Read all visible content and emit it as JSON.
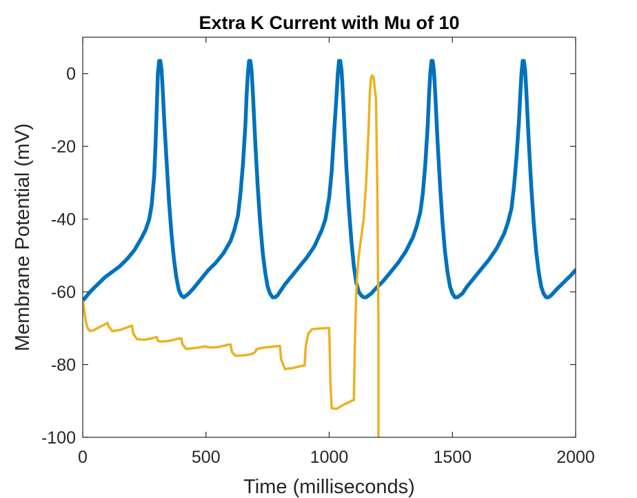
{
  "chart_data": {
    "type": "line",
    "title": "Extra K Current with Mu of 10",
    "xlabel": "Time (milliseconds)",
    "ylabel": "Membrane Potential (mV)",
    "xlim": [
      0,
      2000
    ],
    "ylim": [
      -100,
      10
    ],
    "xticks": [
      0,
      500,
      1000,
      1500,
      2000
    ],
    "xtick_labels": [
      "0",
      "500",
      "1000",
      "1500",
      "2000"
    ],
    "yticks": [
      -100,
      -80,
      -60,
      -40,
      -20,
      0
    ],
    "ytick_labels": [
      "-100",
      "-80",
      "-60",
      "-40",
      "-20",
      "0"
    ],
    "grid": false,
    "series": [
      {
        "color": "#0072BD",
        "x": [
          0,
          30,
          60,
          90,
          120,
          150,
          180,
          210,
          240,
          255,
          270,
          280,
          290,
          295,
          300,
          305,
          310,
          315,
          320,
          325,
          330,
          340,
          350,
          360,
          370,
          380,
          390,
          400,
          410,
          420,
          430,
          450,
          480,
          510,
          540,
          570,
          600,
          615,
          630,
          640,
          650,
          660,
          665,
          670,
          675,
          680,
          685,
          690,
          695,
          700,
          710,
          720,
          730,
          740,
          750,
          760,
          770,
          780,
          790,
          800,
          820,
          850,
          880,
          910,
          940,
          970,
          985,
          1000,
          1010,
          1020,
          1030,
          1035,
          1040,
          1045,
          1050,
          1055,
          1060,
          1065,
          1070,
          1080,
          1090,
          1100,
          1110,
          1120,
          1130,
          1140,
          1150,
          1160,
          1170,
          1190,
          1220,
          1250,
          1280,
          1310,
          1340,
          1355,
          1370,
          1380,
          1390,
          1400,
          1405,
          1410,
          1415,
          1420,
          1425,
          1430,
          1435,
          1440,
          1450,
          1460,
          1470,
          1480,
          1490,
          1500,
          1510,
          1520,
          1530,
          1540,
          1560,
          1590,
          1620,
          1650,
          1680,
          1710,
          1725,
          1740,
          1750,
          1760,
          1770,
          1775,
          1780,
          1785,
          1790,
          1795,
          1800,
          1805,
          1810,
          1820,
          1830,
          1840,
          1850,
          1860,
          1870,
          1880,
          1890,
          1900,
          1920,
          1950,
          1980,
          2000
        ],
        "y": [
          -62.5,
          -60,
          -58,
          -56,
          -54.5,
          -53,
          -51,
          -48.5,
          -45,
          -43,
          -40,
          -36,
          -28,
          -20,
          -10,
          0,
          3.5,
          3.5,
          1,
          -5,
          -12,
          -24,
          -35,
          -44,
          -51,
          -56,
          -59.5,
          -61,
          -61.5,
          -61,
          -60.5,
          -59,
          -56.5,
          -54,
          -52,
          -49.5,
          -46,
          -43,
          -39,
          -33,
          -25,
          -14,
          -6,
          0,
          3.5,
          3.5,
          1,
          -5,
          -12,
          -19,
          -31,
          -41,
          -49,
          -54.5,
          -58.5,
          -60.5,
          -61.5,
          -61.5,
          -61,
          -60,
          -58,
          -55.5,
          -53,
          -50.5,
          -47.5,
          -43,
          -40,
          -34,
          -27,
          -16,
          -6,
          0,
          3.5,
          3.5,
          1,
          -5,
          -12,
          -19,
          -26,
          -37,
          -46,
          -53,
          -57.5,
          -60,
          -61,
          -61.5,
          -61.5,
          -61,
          -60.5,
          -59,
          -57,
          -54.5,
          -52,
          -49,
          -45,
          -42,
          -38,
          -33,
          -25,
          -14,
          -6,
          0,
          3.5,
          3.5,
          1,
          -5,
          -12,
          -19,
          -31,
          -41,
          -49,
          -54.5,
          -58.5,
          -60.5,
          -61.5,
          -61.5,
          -61,
          -60.5,
          -58.5,
          -56,
          -53.5,
          -51,
          -48,
          -44,
          -41,
          -37,
          -31,
          -23,
          -13,
          -6,
          0,
          3.5,
          3.5,
          1,
          -5,
          -12,
          -19,
          -31,
          -41,
          -49,
          -54.5,
          -58.5,
          -60.5,
          -61.5,
          -61.5,
          -61,
          -59.5,
          -57.5,
          -55.5,
          -54
        ]
      },
      {
        "color": "#EDB120",
        "x": [
          0,
          5,
          10,
          15,
          20,
          30,
          45,
          60,
          80,
          95,
          100,
          105,
          120,
          150,
          180,
          195,
          200,
          205,
          220,
          250,
          280,
          295,
          300,
          305,
          320,
          350,
          380,
          395,
          400,
          405,
          420,
          450,
          480,
          495,
          500,
          505,
          520,
          550,
          580,
          595,
          600,
          605,
          620,
          650,
          680,
          695,
          700,
          705,
          720,
          750,
          780,
          795,
          800,
          805,
          820,
          850,
          880,
          895,
          900,
          905,
          915,
          930,
          960,
          990,
          995,
          1000,
          1005,
          1010,
          1030,
          1060,
          1090,
          1095,
          1100,
          1105,
          1110,
          1115,
          1120,
          1130,
          1140,
          1150,
          1160,
          1165,
          1170,
          1175,
          1180,
          1185,
          1190,
          1195,
          1200,
          1200
        ],
        "y": [
          -62.5,
          -64.5,
          -67,
          -69,
          -70,
          -70.8,
          -70.5,
          -70,
          -69.3,
          -68.8,
          -68.5,
          -69.5,
          -70.8,
          -70.5,
          -69.8,
          -69.4,
          -69.3,
          -71.5,
          -73,
          -73.2,
          -72.8,
          -72.5,
          -72.4,
          -73.5,
          -73.7,
          -73.5,
          -73,
          -72.8,
          -72.8,
          -74.5,
          -75.7,
          -75.5,
          -75.2,
          -75,
          -75,
          -75.2,
          -75.3,
          -75.2,
          -74.7,
          -74.5,
          -74.5,
          -76.5,
          -77.6,
          -77.5,
          -77.2,
          -76.8,
          -76.5,
          -75.8,
          -75.5,
          -75.2,
          -75,
          -74.9,
          -74.9,
          -78.5,
          -81.2,
          -81,
          -80.5,
          -80.3,
          -80.3,
          -75,
          -71.5,
          -70.3,
          -70.1,
          -70,
          -70,
          -70,
          -85,
          -92,
          -92.2,
          -91,
          -90,
          -89.8,
          -89.8,
          -72,
          -60,
          -54,
          -50,
          -45,
          -40,
          -30,
          -15,
          -5,
          -1,
          -0.5,
          -1,
          -4,
          -7,
          -30,
          -70,
          -100
        ]
      }
    ]
  }
}
